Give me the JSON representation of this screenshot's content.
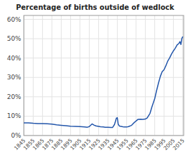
{
  "chart_data": {
    "type": "line",
    "title": "Percentage of births outside of wedlock",
    "x": [
      1845,
      1850,
      1855,
      1860,
      1865,
      1870,
      1875,
      1880,
      1885,
      1890,
      1895,
      1900,
      1905,
      1910,
      1913,
      1915,
      1918,
      1920,
      1922,
      1925,
      1927,
      1930,
      1932,
      1935,
      1938,
      1940,
      1942,
      1944,
      1945,
      1946,
      1947,
      1948,
      1950,
      1952,
      1954,
      1955,
      1957,
      1960,
      1962,
      1965,
      1967,
      1970,
      1972,
      1975,
      1977,
      1980,
      1982,
      1985,
      1987,
      1989,
      1991,
      1993,
      1995,
      1997,
      1999,
      2001,
      2003,
      2005,
      2007,
      2009,
      2011,
      2012,
      2013,
      2014,
      2015
    ],
    "values": [
      0.065,
      0.065,
      0.063,
      0.062,
      0.062,
      0.061,
      0.059,
      0.055,
      0.053,
      0.051,
      0.048,
      0.047,
      0.046,
      0.044,
      0.043,
      0.046,
      0.06,
      0.054,
      0.05,
      0.047,
      0.045,
      0.044,
      0.043,
      0.043,
      0.042,
      0.042,
      0.057,
      0.09,
      0.092,
      0.058,
      0.05,
      0.048,
      0.046,
      0.044,
      0.044,
      0.044,
      0.046,
      0.052,
      0.062,
      0.075,
      0.083,
      0.084,
      0.083,
      0.085,
      0.091,
      0.115,
      0.148,
      0.19,
      0.232,
      0.27,
      0.305,
      0.33,
      0.34,
      0.361,
      0.385,
      0.401,
      0.421,
      0.437,
      0.451,
      0.468,
      0.476,
      0.485,
      0.47,
      0.5,
      0.511
    ],
    "color": "#2255aa",
    "xlim": [
      1845,
      2016
    ],
    "xticks": [
      1845,
      1855,
      1865,
      1875,
      1885,
      1895,
      1905,
      1915,
      1925,
      1935,
      1945,
      1955,
      1965,
      1975,
      1985,
      1995,
      2005,
      2015
    ],
    "ylim": [
      0,
      0.62
    ],
    "yticks": [
      {
        "value": 0,
        "label": "0%"
      },
      {
        "value": 0.1,
        "label": "10%"
      },
      {
        "value": 0.2,
        "label": "20%"
      },
      {
        "value": 0.3,
        "label": "30%"
      },
      {
        "value": 0.4,
        "label": "40%"
      },
      {
        "value": 0.5,
        "label": "50%"
      },
      {
        "value": 0.6,
        "label": "60%"
      }
    ],
    "grid": true
  }
}
